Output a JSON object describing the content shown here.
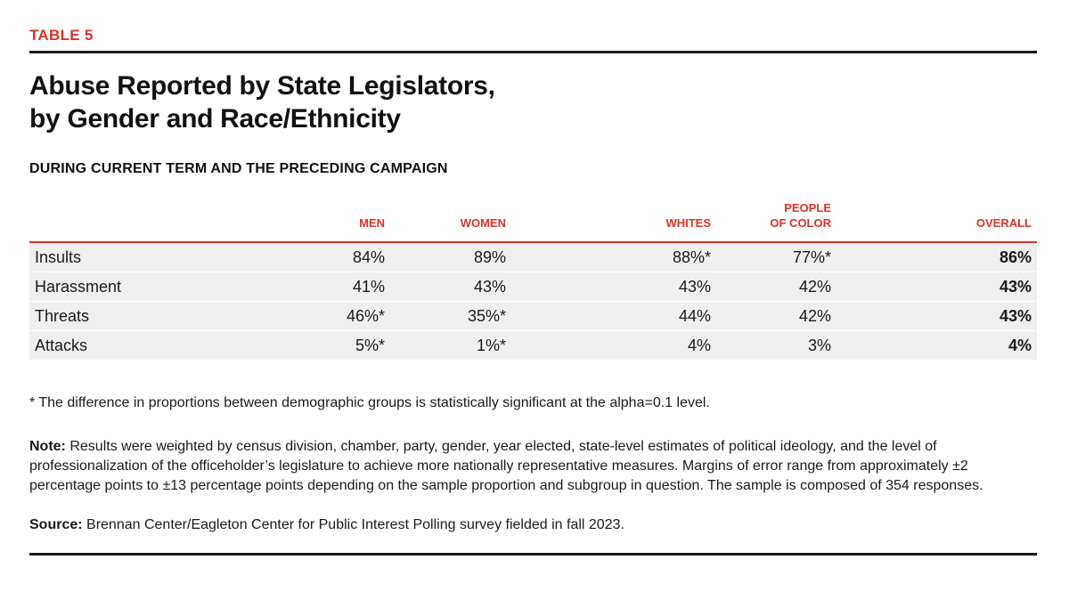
{
  "label": "TABLE 5",
  "title": {
    "line1": "Abuse Reported by State Legislators,",
    "line2": "by Gender and Race/Ethnicity"
  },
  "subtitle": "DURING CURRENT TERM AND THE PRECEDING CAMPAIGN",
  "table": {
    "headers": {
      "men": "MEN",
      "women": "WOMEN",
      "whites": "WHITES",
      "poc_line1": "PEOPLE",
      "poc_line2": "OF COLOR",
      "overall": "OVERALL"
    },
    "rows": [
      {
        "label": "Insults",
        "men": "84%",
        "women": "89%",
        "whites": "88%*",
        "poc": "77%*",
        "overall": "86%"
      },
      {
        "label": "Harassment",
        "men": "41%",
        "women": "43%",
        "whites": "43%",
        "poc": "42%",
        "overall": "43%"
      },
      {
        "label": "Threats",
        "men": "46%*",
        "women": "35%*",
        "whites": "44%",
        "poc": "42%",
        "overall": "43%"
      },
      {
        "label": "Attacks",
        "men": "5%*",
        "women": "1%*",
        "whites": "4%",
        "poc": "3%",
        "overall": "4%"
      }
    ]
  },
  "footnote": "* The difference in proportions between demographic groups is statistically significant at the alpha=0.1 level.",
  "note": {
    "label": "Note:",
    "text": "Results were weighted by census division, chamber, party, gender, year elected, state-level estimates of political ideology, and the level of professionalization of the officeholder’s legislature to achieve more nationally representative measures. Margins of error range from approximately ±2 percentage points to ±13 percentage points depending on the sample proportion and subgroup in question. The sample is composed of 354 responses."
  },
  "source": {
    "label": "Source:",
    "text": "Brennan Center/Eagleton Center for Public Interest Polling survey fielded in fall 2023."
  },
  "colors": {
    "accent": "#d7332a",
    "rule": "#1a1a1a",
    "row_shade": "#efefef"
  }
}
